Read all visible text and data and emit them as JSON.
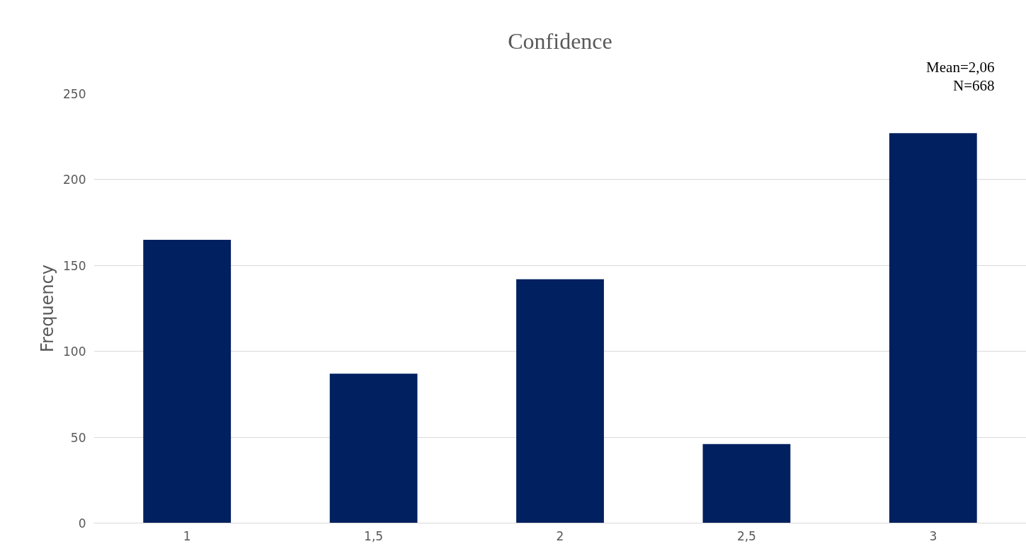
{
  "chart_data": {
    "type": "bar",
    "title": "Confidence",
    "ylabel": "Frequency",
    "categories": [
      "1",
      "1,5",
      "2",
      "2,5",
      "3"
    ],
    "values": [
      165,
      87,
      142,
      46,
      227
    ],
    "color": "#002060",
    "ylim": [
      0,
      250
    ],
    "yticks": [
      0,
      50,
      100,
      150,
      200,
      250
    ],
    "grid": "y",
    "annotations": [
      "Mean=2,06",
      "N=668"
    ]
  }
}
